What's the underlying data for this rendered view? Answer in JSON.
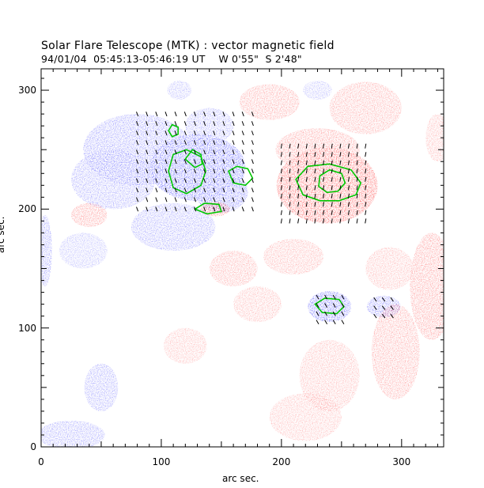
{
  "title": "Solar Flare Telescope (MTK) : vector magnetic field",
  "subtitle": "94/01/04  05:45:13-05:46:19 UT    W 0'55\"  S 2'48\"",
  "xlabel": "arc sec.",
  "ylabel": "arc sec.",
  "colors": {
    "negative_polarity": "#3b3bff",
    "positive_polarity": "#ff3b3b",
    "contour": "#00c800",
    "vector": "#000000",
    "axes": "#000000"
  },
  "chart_data": {
    "type": "heatmap",
    "title": "Solar Flare Telescope (MTK) : vector magnetic field",
    "subtitle": "94/01/04  05:45:13-05:46:19 UT    W 0'55\"  S 2'48\"",
    "xlabel": "arc sec.",
    "ylabel": "arc sec.",
    "xlim": [
      0,
      335
    ],
    "ylim": [
      0,
      318
    ],
    "x_ticks": [
      0,
      100,
      200,
      300
    ],
    "y_ticks": [
      0,
      100,
      200,
      300
    ],
    "x_tick_labels": [
      "0",
      "100",
      "200",
      "300"
    ],
    "y_tick_labels": [
      "0",
      "100",
      "200",
      "300"
    ],
    "grid": false,
    "negative_regions": [
      {
        "cx": 130,
        "cy": 235,
        "rx": 40,
        "ry": 28,
        "strength": 1.0
      },
      {
        "cx": 80,
        "cy": 250,
        "rx": 45,
        "ry": 30,
        "strength": 0.55
      },
      {
        "cx": 150,
        "cy": 215,
        "rx": 22,
        "ry": 18,
        "strength": 0.8
      },
      {
        "cx": 60,
        "cy": 225,
        "rx": 35,
        "ry": 25,
        "strength": 0.45
      },
      {
        "cx": 110,
        "cy": 185,
        "rx": 35,
        "ry": 20,
        "strength": 0.45
      },
      {
        "cx": 140,
        "cy": 270,
        "rx": 20,
        "ry": 15,
        "strength": 0.4
      },
      {
        "cx": 240,
        "cy": 118,
        "rx": 18,
        "ry": 13,
        "strength": 0.9
      },
      {
        "cx": 285,
        "cy": 118,
        "rx": 14,
        "ry": 9,
        "strength": 0.65
      },
      {
        "cx": 50,
        "cy": 50,
        "rx": 14,
        "ry": 20,
        "strength": 0.45
      },
      {
        "cx": 25,
        "cy": 10,
        "rx": 28,
        "ry": 12,
        "strength": 0.45
      },
      {
        "cx": 3,
        "cy": 165,
        "rx": 6,
        "ry": 30,
        "strength": 0.5
      },
      {
        "cx": 115,
        "cy": 300,
        "rx": 10,
        "ry": 8,
        "strength": 0.3
      },
      {
        "cx": 230,
        "cy": 300,
        "rx": 12,
        "ry": 8,
        "strength": 0.25
      },
      {
        "cx": 35,
        "cy": 165,
        "rx": 20,
        "ry": 15,
        "strength": 0.25
      }
    ],
    "positive_regions": [
      {
        "cx": 238,
        "cy": 220,
        "rx": 42,
        "ry": 32,
        "strength": 1.0
      },
      {
        "cx": 230,
        "cy": 250,
        "rx": 35,
        "ry": 18,
        "strength": 0.5
      },
      {
        "cx": 145,
        "cy": 200,
        "rx": 12,
        "ry": 6,
        "strength": 0.75
      },
      {
        "cx": 270,
        "cy": 285,
        "rx": 30,
        "ry": 22,
        "strength": 0.4
      },
      {
        "cx": 190,
        "cy": 290,
        "rx": 25,
        "ry": 15,
        "strength": 0.45
      },
      {
        "cx": 325,
        "cy": 135,
        "rx": 18,
        "ry": 45,
        "strength": 0.55
      },
      {
        "cx": 295,
        "cy": 80,
        "rx": 20,
        "ry": 40,
        "strength": 0.45
      },
      {
        "cx": 40,
        "cy": 195,
        "rx": 15,
        "ry": 10,
        "strength": 0.55
      },
      {
        "cx": 160,
        "cy": 150,
        "rx": 20,
        "ry": 15,
        "strength": 0.4
      },
      {
        "cx": 210,
        "cy": 160,
        "rx": 25,
        "ry": 15,
        "strength": 0.35
      },
      {
        "cx": 240,
        "cy": 60,
        "rx": 25,
        "ry": 30,
        "strength": 0.3
      },
      {
        "cx": 180,
        "cy": 120,
        "rx": 20,
        "ry": 15,
        "strength": 0.3
      },
      {
        "cx": 120,
        "cy": 85,
        "rx": 18,
        "ry": 15,
        "strength": 0.25
      },
      {
        "cx": 220,
        "cy": 25,
        "rx": 30,
        "ry": 20,
        "strength": 0.25
      },
      {
        "cx": 290,
        "cy": 150,
        "rx": 20,
        "ry": 18,
        "strength": 0.3
      },
      {
        "cx": 330,
        "cy": 260,
        "rx": 10,
        "ry": 20,
        "strength": 0.3
      }
    ],
    "contours": [
      {
        "polarity": "positive",
        "points": [
          [
            212,
            225
          ],
          [
            222,
            236
          ],
          [
            240,
            238
          ],
          [
            258,
            233
          ],
          [
            266,
            222
          ],
          [
            262,
            212
          ],
          [
            248,
            207
          ],
          [
            232,
            207
          ],
          [
            218,
            212
          ]
        ]
      },
      {
        "polarity": "positive",
        "points": [
          [
            232,
            228
          ],
          [
            240,
            233
          ],
          [
            250,
            230
          ],
          [
            253,
            222
          ],
          [
            247,
            215
          ],
          [
            238,
            214
          ],
          [
            231,
            219
          ]
        ]
      },
      {
        "polarity": "negative",
        "points": [
          [
            106,
            232
          ],
          [
            110,
            218
          ],
          [
            121,
            213
          ],
          [
            133,
            220
          ],
          [
            137,
            232
          ],
          [
            133,
            244
          ],
          [
            121,
            250
          ],
          [
            110,
            246
          ]
        ]
      },
      {
        "polarity": "negative",
        "points": [
          [
            120,
            242
          ],
          [
            126,
            250
          ],
          [
            133,
            246
          ],
          [
            134,
            238
          ],
          [
            128,
            235
          ]
        ]
      },
      {
        "polarity": "negative",
        "points": [
          [
            156,
            232
          ],
          [
            160,
            222
          ],
          [
            170,
            220
          ],
          [
            176,
            226
          ],
          [
            172,
            234
          ],
          [
            163,
            236
          ]
        ]
      },
      {
        "polarity": "negative",
        "points": [
          [
            106,
            266
          ],
          [
            109,
            261
          ],
          [
            114,
            263
          ],
          [
            114,
            269
          ],
          [
            109,
            271
          ]
        ]
      },
      {
        "polarity": "negative",
        "points": [
          [
            228,
            120
          ],
          [
            234,
            113
          ],
          [
            246,
            112
          ],
          [
            252,
            118
          ],
          [
            248,
            124
          ],
          [
            236,
            125
          ]
        ]
      },
      {
        "polarity": "positive",
        "points": [
          [
            128,
            200
          ],
          [
            136,
            205
          ],
          [
            148,
            204
          ],
          [
            150,
            198
          ],
          [
            138,
            196
          ]
        ]
      }
    ],
    "vector_field": {
      "regions": [
        {
          "x0": 80,
          "x1": 180,
          "y0": 200,
          "y1": 280,
          "step": 8,
          "angle_deg": 110
        },
        {
          "x0": 200,
          "x1": 275,
          "y0": 190,
          "y1": 255,
          "step": 7,
          "angle_deg": 80
        },
        {
          "x0": 230,
          "x1": 255,
          "y0": 105,
          "y1": 130,
          "step": 7,
          "angle_deg": 120
        },
        {
          "x0": 278,
          "x1": 295,
          "y0": 110,
          "y1": 128,
          "step": 7,
          "angle_deg": 125
        }
      ]
    }
  }
}
